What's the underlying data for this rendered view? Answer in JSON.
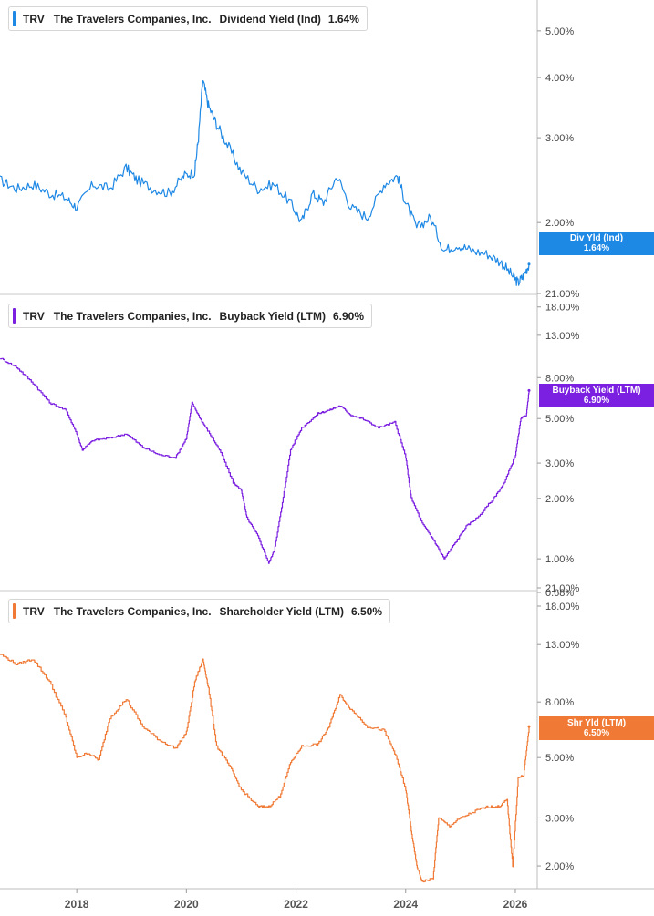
{
  "chart_data": [
    {
      "type": "line",
      "ticker": "TRV",
      "company": "The Travelers Companies, Inc.",
      "metric": "Dividend Yield (Ind)",
      "current_value": "1.64%",
      "badge_label": "Div Yld (Ind)",
      "badge_value": "1.64%",
      "color": "#1e88e5",
      "scale": "log",
      "ylim": [
        1.45,
        6.0
      ],
      "y_ticks": [
        "5.00%",
        "4.00%",
        "3.00%",
        "2.00%"
      ],
      "y_tick_values": [
        5,
        4,
        3,
        2
      ],
      "x": [
        2016.6,
        2016.9,
        2017.2,
        2017.5,
        2017.8,
        2018.0,
        2018.3,
        2018.6,
        2018.9,
        2019.1,
        2019.4,
        2019.7,
        2019.95,
        2020.15,
        2020.22,
        2020.3,
        2020.4,
        2020.55,
        2020.75,
        2021.0,
        2021.3,
        2021.6,
        2021.9,
        2022.1,
        2022.3,
        2022.5,
        2022.75,
        2023.0,
        2023.3,
        2023.6,
        2023.85,
        2024.0,
        2024.2,
        2024.45,
        2024.7,
        2024.95,
        2025.2,
        2025.5,
        2025.75,
        2025.95,
        2026.05,
        2026.15,
        2026.25
      ],
      "values": [
        2.45,
        2.35,
        2.4,
        2.3,
        2.25,
        2.15,
        2.4,
        2.35,
        2.6,
        2.45,
        2.35,
        2.3,
        2.5,
        2.55,
        3.0,
        3.95,
        3.5,
        3.2,
        2.9,
        2.55,
        2.35,
        2.4,
        2.2,
        2.0,
        2.3,
        2.2,
        2.5,
        2.15,
        2.05,
        2.4,
        2.5,
        2.2,
        1.95,
        2.05,
        1.75,
        1.8,
        1.75,
        1.72,
        1.65,
        1.55,
        1.5,
        1.55,
        1.64
      ]
    },
    {
      "type": "line",
      "ticker": "TRV",
      "company": "The Travelers Companies, Inc.",
      "metric": "Buyback Yield (LTM)",
      "current_value": "6.90%",
      "badge_label": "Buyback Yield (LTM)",
      "badge_value": "6.90%",
      "color": "#7b1fe0",
      "scale": "log",
      "ylim": [
        0.68,
        21.0
      ],
      "y_ticks": [
        "21.00%",
        "18.00%",
        "13.00%",
        "8.00%",
        "5.00%",
        "3.00%",
        "2.00%",
        "1.00%",
        "0.68%"
      ],
      "y_tick_values": [
        21,
        18,
        13,
        8,
        5,
        3,
        2,
        1,
        0.68
      ],
      "x": [
        2016.6,
        2016.9,
        2017.2,
        2017.5,
        2017.8,
        2018.0,
        2018.1,
        2018.3,
        2018.6,
        2018.9,
        2019.2,
        2019.5,
        2019.8,
        2020.0,
        2020.1,
        2020.25,
        2020.4,
        2020.6,
        2020.85,
        2021.0,
        2021.1,
        2021.3,
        2021.5,
        2021.6,
        2021.75,
        2021.9,
        2022.1,
        2022.4,
        2022.6,
        2022.8,
        2023.0,
        2023.2,
        2023.5,
        2023.8,
        2024.0,
        2024.1,
        2024.3,
        2024.5,
        2024.7,
        2024.9,
        2025.1,
        2025.3,
        2025.6,
        2025.8,
        2026.0,
        2026.1,
        2026.2,
        2026.25
      ],
      "values": [
        10.0,
        9.0,
        7.5,
        6.0,
        5.5,
        4.2,
        3.5,
        3.9,
        4.0,
        4.2,
        3.6,
        3.3,
        3.2,
        4.0,
        6.0,
        5.0,
        4.3,
        3.5,
        2.4,
        2.2,
        1.6,
        1.3,
        0.95,
        1.1,
        1.9,
        3.5,
        4.5,
        5.3,
        5.5,
        5.8,
        5.2,
        5.0,
        4.5,
        4.8,
        3.2,
        2.0,
        1.5,
        1.25,
        1.0,
        1.2,
        1.45,
        1.6,
        2.0,
        2.4,
        3.3,
        5.0,
        5.2,
        6.9
      ]
    },
    {
      "type": "line",
      "ticker": "TRV",
      "company": "The Travelers Companies, Inc.",
      "metric": "Shareholder Yield (LTM)",
      "current_value": "6.50%",
      "badge_label": "Shr Yld (LTM)",
      "badge_value": "6.50%",
      "color": "#f07a35",
      "scale": "log",
      "ylim": [
        1.65,
        21.0
      ],
      "y_ticks": [
        "21.00%",
        "18.00%",
        "13.00%",
        "8.00%",
        "5.00%",
        "3.00%",
        "2.00%"
      ],
      "y_tick_values": [
        21,
        18,
        13,
        8,
        5,
        3,
        2
      ],
      "x": [
        2016.6,
        2016.9,
        2017.2,
        2017.5,
        2017.8,
        2018.0,
        2018.2,
        2018.4,
        2018.6,
        2018.9,
        2019.2,
        2019.5,
        2019.8,
        2020.0,
        2020.15,
        2020.3,
        2020.4,
        2020.55,
        2020.8,
        2021.0,
        2021.3,
        2021.5,
        2021.7,
        2021.9,
        2022.1,
        2022.4,
        2022.6,
        2022.8,
        2023.0,
        2023.3,
        2023.6,
        2023.8,
        2024.0,
        2024.1,
        2024.2,
        2024.3,
        2024.5,
        2024.6,
        2024.8,
        2025.0,
        2025.3,
        2025.5,
        2025.7,
        2025.85,
        2025.95,
        2026.05,
        2026.15,
        2026.25
      ],
      "values": [
        12.0,
        11.0,
        11.5,
        9.5,
        7.0,
        5.0,
        5.2,
        4.9,
        7.0,
        8.2,
        6.5,
        5.8,
        5.4,
        6.2,
        9.5,
        11.5,
        9.0,
        5.5,
        4.6,
        3.8,
        3.3,
        3.3,
        3.6,
        4.8,
        5.5,
        5.6,
        6.5,
        8.5,
        7.5,
        6.5,
        6.3,
        5.2,
        3.8,
        2.7,
        2.0,
        1.75,
        1.8,
        3.0,
        2.8,
        3.0,
        3.2,
        3.3,
        3.3,
        3.5,
        2.0,
        4.2,
        4.3,
        6.5
      ]
    }
  ],
  "x_axis": {
    "ticks": [
      "2018",
      "2020",
      "2022",
      "2024",
      "2026"
    ],
    "tick_values": [
      2018,
      2020,
      2022,
      2024,
      2026
    ],
    "xlim": [
      2016.6,
      2026.4
    ]
  }
}
